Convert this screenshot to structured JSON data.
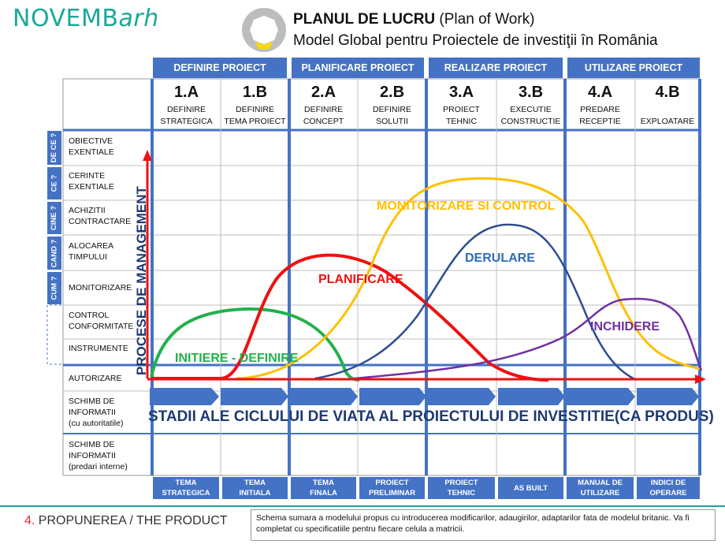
{
  "header": {
    "logo_main": "NOVEMB",
    "logo_tail": "arh",
    "title_bold": "PLANUL DE LUCRU",
    "title_rest": " (Plan of Work)",
    "subtitle": "Model Global pentru Proiectele de investiţii în România"
  },
  "phases": [
    {
      "label": "DEFINIRE PROIECT"
    },
    {
      "label": "PLANIFICARE PROIECT"
    },
    {
      "label": "REALIZARE PROIECT"
    },
    {
      "label": "UTILIZARE PROIECT"
    }
  ],
  "stages": [
    {
      "code": "1.A",
      "line1": "DEFINIRE",
      "line2": "STRATEGICA"
    },
    {
      "code": "1.B",
      "line1": "DEFINIRE",
      "line2": "TEMA PROIECT"
    },
    {
      "code": "2.A",
      "line1": "DEFINIRE",
      "line2": "CONCEPT"
    },
    {
      "code": "2.B",
      "line1": "DEFINIRE",
      "line2": "SOLUTII"
    },
    {
      "code": "3.A",
      "line1": "PROIECT",
      "line2": "TEHNIC"
    },
    {
      "code": "3.B",
      "line1": "EXECUTIE",
      "line2": "CONSTRUCTIE"
    },
    {
      "code": "4.A",
      "line1": "PREDARE",
      "line2": "RECEPTIE"
    },
    {
      "code": "4.B",
      "line1": "",
      "line2": "EXPLOATARE"
    }
  ],
  "rows": [
    {
      "line1": "OBIECTIVE",
      "line2": "EXENTIALE",
      "line3": ""
    },
    {
      "line1": "CERINTE",
      "line2": "EXENTIALE",
      "line3": ""
    },
    {
      "line1": "ACHIZITII",
      "line2": "CONTRACTARE",
      "line3": ""
    },
    {
      "line1": "ALOCAREA",
      "line2": "TIMPULUI",
      "line3": ""
    },
    {
      "line1": "MONITORIZARE",
      "line2": "",
      "line3": ""
    },
    {
      "line1": "CONTROL",
      "line2": "CONFORMITATE",
      "line3": ""
    },
    {
      "line1": "INSTRUMENTE",
      "line2": "",
      "line3": ""
    },
    {
      "line1": "AUTORIZARE",
      "line2": "",
      "line3": ""
    },
    {
      "line1": "SCHIMB DE",
      "line2": "INFORMATII",
      "line3": "(cu autoritatile)"
    },
    {
      "line1": "SCHIMB DE",
      "line2": "INFORMATII",
      "line3": "(predari interne)"
    }
  ],
  "questions": [
    {
      "label": "DE CE ?"
    },
    {
      "label": "CE ?"
    },
    {
      "label": "CINE ?"
    },
    {
      "label": "CAND ?"
    },
    {
      "label": "CUM ?"
    }
  ],
  "deliverables": [
    {
      "line1": "TEMA",
      "line2": "STRATEGICA"
    },
    {
      "line1": "TEMA",
      "line2": "INITIALA"
    },
    {
      "line1": "TEMA",
      "line2": "FINALA"
    },
    {
      "line1": "PROIECT",
      "line2": "PRELIMINAR"
    },
    {
      "line1": "PROIECT",
      "line2": "TEHNIC"
    },
    {
      "line1": "AS BUILT",
      "line2": ""
    },
    {
      "line1": "MANUAL DE",
      "line2": "UTILIZARE"
    },
    {
      "line1": "INDICI DE",
      "line2": "OPERARE"
    }
  ],
  "curves": [
    {
      "label": "INITIERE - DEFINIRE",
      "color": "#22b14c"
    },
    {
      "label": "PLANIFICARE",
      "color": "#ee1111"
    },
    {
      "label": "MONITORIZARE SI CONTROL",
      "color": "#ffc000"
    },
    {
      "label": "DERULARE",
      "color": "#2e4d8f"
    },
    {
      "label": "INCHIDERE",
      "color": "#7030a0"
    }
  ],
  "vertical_axis_label": "PROCESE DE MANAGEMENT",
  "lifecycle_label": "STADII ALE CICLULUI DE VIATA AL PROIECTULUI DE INVESTITIE(CA PRODUS)",
  "footer": {
    "number": "4.",
    "title": " PROPUNEREA / THE PRODUCT",
    "note": "Schema sumara a modelului propus cu introducerea modificarilor, adaugirilor, adaptarilor fata de modelul britanic. Va fi completat cu specificatiile pentru fiecare celula a matricii."
  },
  "colors": {
    "brand_teal": "#1aa898",
    "phase_blue": "#4472c4",
    "axis_red": "#ee1111",
    "grid_gray": "#bfbfbf"
  }
}
